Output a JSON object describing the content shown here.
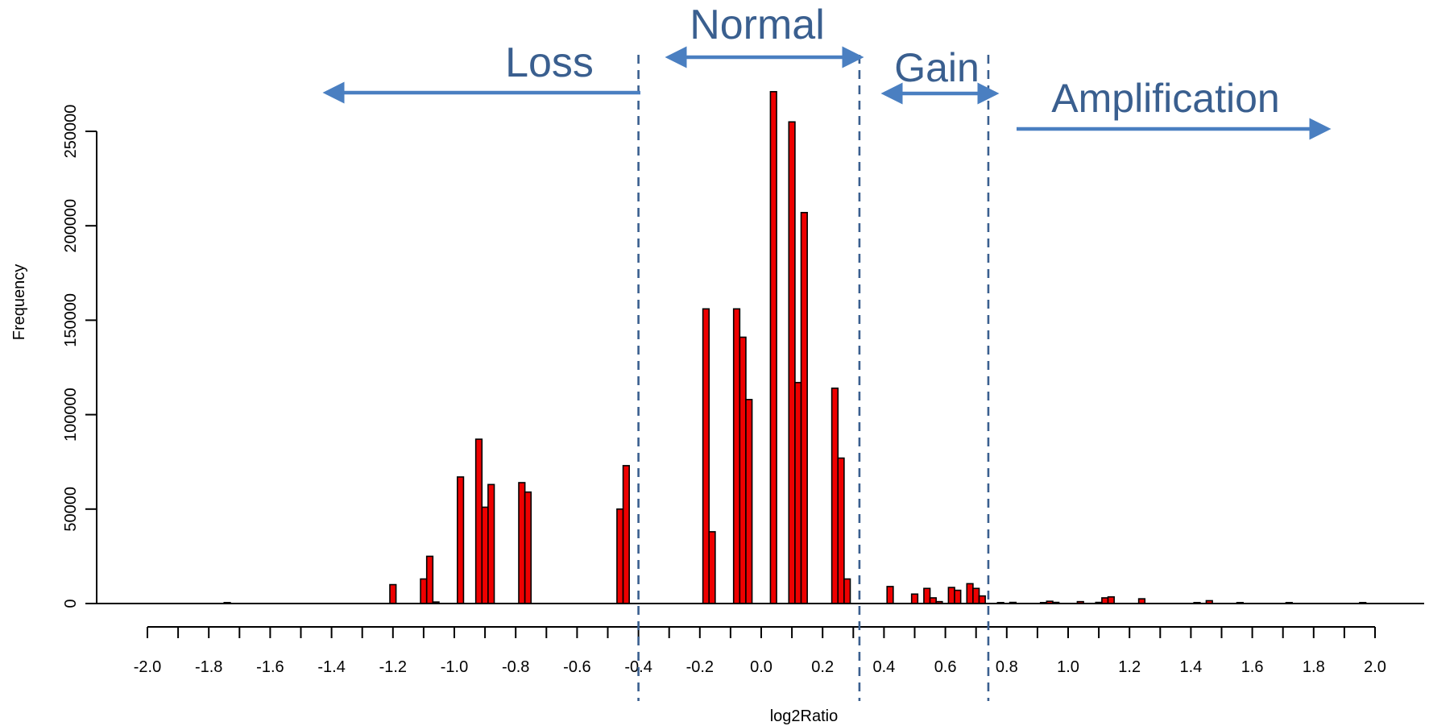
{
  "chart_data": {
    "type": "bar",
    "xlabel": "log2Ratio",
    "ylabel": "Frequency",
    "xlim": [
      -2.0,
      2.0
    ],
    "ylim": [
      0,
      270000
    ],
    "x_ticks": [
      "-2.0",
      "-1.8",
      "-1.6",
      "-1.4",
      "-1.2",
      "-1.0",
      "-0.8",
      "-0.6",
      "-0.4",
      "-0.2",
      "0.0",
      "0.2",
      "0.4",
      "0.6",
      "0.8",
      "1.0",
      "1.2",
      "1.4",
      "1.6",
      "1.8",
      "2.0"
    ],
    "y_ticks": [
      "0",
      "50000",
      "100000",
      "150000",
      "200000",
      "250000"
    ],
    "bin_width": 0.02,
    "bars": [
      {
        "x": -1.74,
        "y": 500
      },
      {
        "x": -1.2,
        "y": 10000
      },
      {
        "x": -1.1,
        "y": 13000
      },
      {
        "x": -1.08,
        "y": 25000
      },
      {
        "x": -1.06,
        "y": 800
      },
      {
        "x": -0.98,
        "y": 67000
      },
      {
        "x": -0.92,
        "y": 87000
      },
      {
        "x": -0.9,
        "y": 51000
      },
      {
        "x": -0.88,
        "y": 63000
      },
      {
        "x": -0.78,
        "y": 64000
      },
      {
        "x": -0.76,
        "y": 59000
      },
      {
        "x": -0.46,
        "y": 50000
      },
      {
        "x": -0.44,
        "y": 73000
      },
      {
        "x": -0.18,
        "y": 156000
      },
      {
        "x": -0.16,
        "y": 38000
      },
      {
        "x": -0.08,
        "y": 156000
      },
      {
        "x": -0.06,
        "y": 141000
      },
      {
        "x": -0.04,
        "y": 108000
      },
      {
        "x": 0.04,
        "y": 271000
      },
      {
        "x": 0.1,
        "y": 255000
      },
      {
        "x": 0.12,
        "y": 117000
      },
      {
        "x": 0.14,
        "y": 207000
      },
      {
        "x": 0.24,
        "y": 114000
      },
      {
        "x": 0.26,
        "y": 77000
      },
      {
        "x": 0.28,
        "y": 13000
      },
      {
        "x": 0.42,
        "y": 9000
      },
      {
        "x": 0.5,
        "y": 5000
      },
      {
        "x": 0.54,
        "y": 8000
      },
      {
        "x": 0.56,
        "y": 3000
      },
      {
        "x": 0.58,
        "y": 1000
      },
      {
        "x": 0.62,
        "y": 8500
      },
      {
        "x": 0.64,
        "y": 7000
      },
      {
        "x": 0.68,
        "y": 10500
      },
      {
        "x": 0.7,
        "y": 8000
      },
      {
        "x": 0.72,
        "y": 4000
      },
      {
        "x": 0.78,
        "y": 500
      },
      {
        "x": 0.82,
        "y": 600
      },
      {
        "x": 0.92,
        "y": 500
      },
      {
        "x": 0.94,
        "y": 1200
      },
      {
        "x": 0.96,
        "y": 600
      },
      {
        "x": 1.04,
        "y": 1000
      },
      {
        "x": 1.1,
        "y": 600
      },
      {
        "x": 1.12,
        "y": 3000
      },
      {
        "x": 1.14,
        "y": 3500
      },
      {
        "x": 1.24,
        "y": 2500
      },
      {
        "x": 1.42,
        "y": 500
      },
      {
        "x": 1.46,
        "y": 1500
      },
      {
        "x": 1.56,
        "y": 500
      },
      {
        "x": 1.72,
        "y": 500
      },
      {
        "x": 1.96,
        "y": 500
      }
    ],
    "thresholds": [
      -0.4,
      0.32,
      0.74
    ],
    "regions": [
      {
        "label": "Loss",
        "arrow": "left"
      },
      {
        "label": "Normal",
        "arrow": "both"
      },
      {
        "label": "Gain",
        "arrow": "both"
      },
      {
        "label": "Amplification",
        "arrow": "right"
      }
    ],
    "colors": {
      "bar_fill": "#ee0000",
      "bar_stroke": "#000000",
      "region_text": "#3a5f8f",
      "arrow": "#4a7fc1",
      "threshold": "#3a5f8f"
    }
  }
}
